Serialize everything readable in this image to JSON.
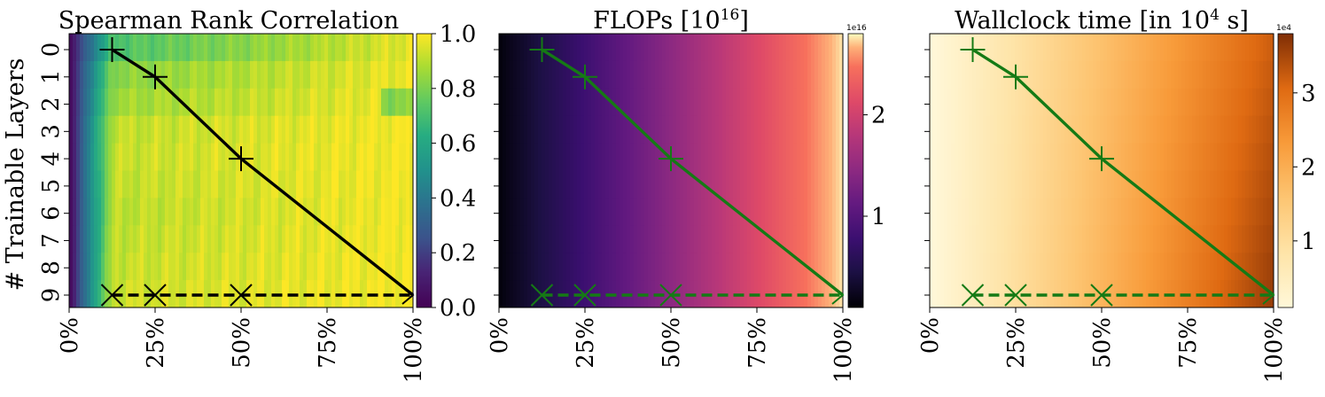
{
  "chart_data": [
    {
      "type": "heatmap",
      "title": "Spearman Rank Correlation",
      "ylabel": "# Trainable Layers",
      "y_categories": [
        "0",
        "1",
        "2",
        "3",
        "4",
        "5",
        "6",
        "7",
        "8",
        "9"
      ],
      "x_ticks": [
        "0%",
        "25%",
        "50%",
        "75%",
        "100%"
      ],
      "xlim": [
        0,
        100
      ],
      "colormap": "viridis",
      "colorbar": {
        "range": [
          0.0,
          1.0
        ],
        "ticks": [
          "0.0",
          "0.2",
          "0.4",
          "0.6",
          "0.8",
          "1.0"
        ],
        "multiplier": ""
      },
      "line_color": "#000000",
      "solid_path": [
        {
          "x": 12.5,
          "layer": 0
        },
        {
          "x": 25,
          "layer": 1
        },
        {
          "x": 50,
          "layer": 4
        },
        {
          "x": 100,
          "layer": 9
        }
      ],
      "dashed_path": [
        {
          "x": 12.5,
          "layer": 9
        },
        {
          "x": 25,
          "layer": 9
        },
        {
          "x": 50,
          "layer": 9
        },
        {
          "x": 100,
          "layer": 9
        }
      ]
    },
    {
      "type": "heatmap",
      "title": "FLOPs [10",
      "title_sup": "16",
      "title_suffix": "]",
      "y_categories": [
        "0",
        "1",
        "2",
        "3",
        "4",
        "5",
        "6",
        "7",
        "8",
        "9"
      ],
      "x_ticks": [
        "0%",
        "25%",
        "50%",
        "75%",
        "100%"
      ],
      "xlim": [
        0,
        100
      ],
      "colormap": "magma",
      "colorbar": {
        "range": [
          0.1,
          2.8
        ],
        "ticks": [
          "1",
          "2"
        ],
        "tick_values": [
          1,
          2
        ],
        "multiplier": "1e16"
      },
      "line_color": "#157a15",
      "solid_path": [
        {
          "x": 12.5,
          "layer": 0
        },
        {
          "x": 25,
          "layer": 1
        },
        {
          "x": 50,
          "layer": 4
        },
        {
          "x": 100,
          "layer": 9
        }
      ],
      "dashed_path": [
        {
          "x": 12.5,
          "layer": 9
        },
        {
          "x": 25,
          "layer": 9
        },
        {
          "x": 50,
          "layer": 9
        },
        {
          "x": 100,
          "layer": 9
        }
      ]
    },
    {
      "type": "heatmap",
      "title": "Wallclock time [in 10",
      "title_sup": "4",
      "title_suffix": " s]",
      "y_categories": [
        "0",
        "1",
        "2",
        "3",
        "4",
        "5",
        "6",
        "7",
        "8",
        "9"
      ],
      "x_ticks": [
        "0%",
        "25%",
        "50%",
        "75%",
        "100%"
      ],
      "xlim": [
        0,
        100
      ],
      "colormap": "orange",
      "colorbar": {
        "range": [
          0.1,
          3.8
        ],
        "ticks": [
          "1",
          "2",
          "3"
        ],
        "tick_values": [
          1,
          2,
          3
        ],
        "multiplier": "1e4"
      },
      "line_color": "#157a15",
      "solid_path": [
        {
          "x": 12.5,
          "layer": 0
        },
        {
          "x": 25,
          "layer": 1
        },
        {
          "x": 50,
          "layer": 4
        },
        {
          "x": 100,
          "layer": 9
        }
      ],
      "dashed_path": [
        {
          "x": 12.5,
          "layer": 9
        },
        {
          "x": 25,
          "layer": 9
        },
        {
          "x": 50,
          "layer": 9
        },
        {
          "x": 100,
          "layer": 9
        }
      ]
    }
  ]
}
